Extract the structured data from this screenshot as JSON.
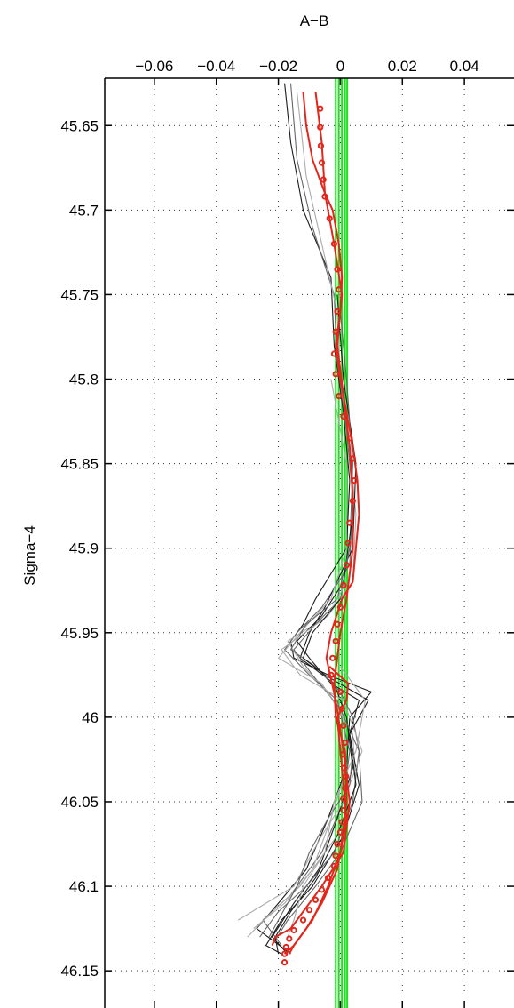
{
  "chart_data": {
    "type": "line",
    "title": "",
    "xlabel": "A−B",
    "ylabel": "Sigma−4",
    "xlim": [
      -0.076,
      0.056
    ],
    "ylim": [
      45.622,
      46.172
    ],
    "y_reversed": true,
    "x_axis_position": "top",
    "x_ticks": [
      -0.06,
      -0.04,
      -0.02,
      0,
      0.02,
      0.04
    ],
    "x_tick_labels": [
      "−0.06",
      "−0.04",
      "−0.02",
      "0",
      "0.02",
      "0.04"
    ],
    "y_ticks": [
      45.65,
      45.7,
      45.75,
      45.8,
      45.85,
      45.9,
      45.95,
      46.0,
      46.05,
      46.1,
      46.15
    ],
    "y_tick_labels": [
      "45.65",
      "45.7",
      "45.75",
      "45.8",
      "45.85",
      "45.9",
      "45.95",
      "46",
      "46.05",
      "46.1",
      "46.15"
    ],
    "grid": "dotted",
    "colors": {
      "points": "#e3261b",
      "red_lines": "#e3261b",
      "green_lines": "#1fe01f",
      "dark_lines": "#1a1a1a",
      "mid_lines": "#666666",
      "light_lines": "#aaaaaa"
    },
    "green_lines_x": [
      -0.0015,
      -0.0005,
      0.0005,
      0.0015,
      0.0022
    ],
    "points": {
      "sigma": [
        45.64,
        45.651,
        45.662,
        45.672,
        45.682,
        45.692,
        45.705,
        45.72,
        45.735,
        45.747,
        45.76,
        45.772,
        45.785,
        45.797,
        45.81,
        45.822,
        45.835,
        45.847,
        45.86,
        45.872,
        45.885,
        45.897,
        45.91,
        45.922,
        45.935,
        45.945,
        45.955,
        45.965,
        45.975,
        45.985,
        45.995,
        46.005,
        46.015,
        46.022,
        46.03,
        46.035,
        46.042,
        46.048,
        46.055,
        46.062,
        46.068,
        46.075,
        46.082,
        46.088,
        46.095,
        46.102,
        46.108,
        46.114,
        46.12,
        46.126,
        46.131,
        46.136,
        46.14,
        46.145
      ],
      "a_minus_b": [
        -0.0065,
        -0.0065,
        -0.0063,
        -0.006,
        -0.0055,
        -0.005,
        -0.0035,
        -0.002,
        -0.001,
        -0.0005,
        -0.001,
        -0.0015,
        -0.002,
        -0.0015,
        -0.0005,
        0.001,
        0.003,
        0.004,
        0.0045,
        0.004,
        0.003,
        0.0025,
        0.002,
        0.001,
        0.0,
        -0.001,
        -0.0015,
        -0.0025,
        -0.003,
        0.0,
        0.0005,
        0.001,
        0.0015,
        0.0008,
        0.0012,
        0.0018,
        0.0015,
        0.001,
        0.001,
        0.0005,
        0.0,
        -0.001,
        -0.0015,
        -0.002,
        -0.004,
        -0.006,
        -0.008,
        -0.01,
        -0.012,
        -0.015,
        -0.0165,
        -0.0175,
        -0.018,
        -0.018
      ]
    },
    "red_lines": [
      {
        "sigma": [
          45.63,
          45.65,
          45.67,
          45.69,
          45.7,
          45.72,
          45.74,
          45.76,
          45.78,
          45.8,
          45.82,
          45.84,
          45.86,
          45.88,
          45.9,
          45.92,
          45.93,
          45.95,
          45.965,
          45.99,
          46.02,
          46.05,
          46.08,
          46.1,
          46.115,
          46.125,
          46.13,
          46.135
        ],
        "a_minus_b": [
          -0.012,
          -0.011,
          -0.009,
          -0.005,
          -0.0025,
          -0.0005,
          0.0005,
          0.0,
          -0.0015,
          0.0,
          0.002,
          0.004,
          0.0055,
          0.006,
          0.005,
          0.004,
          0.0005,
          -0.003,
          -0.0045,
          -0.0015,
          0.001,
          0.003,
          0.001,
          -0.006,
          -0.012,
          -0.016,
          -0.021,
          -0.022
        ]
      },
      {
        "sigma": [
          45.63,
          45.66,
          45.69,
          45.72,
          45.75,
          45.78,
          45.81,
          45.84,
          45.87,
          45.9,
          45.93,
          45.95,
          45.98,
          46.0,
          46.02,
          46.05,
          46.08,
          46.1,
          46.12,
          46.135,
          46.14
        ],
        "a_minus_b": [
          -0.008,
          -0.006,
          -0.005,
          -0.002,
          0.0005,
          -0.001,
          0.001,
          0.003,
          0.004,
          0.004,
          0.002,
          0.0,
          -0.002,
          -0.0015,
          0.0015,
          0.002,
          0.0,
          -0.004,
          -0.009,
          -0.015,
          -0.018
        ]
      },
      {
        "sigma": [
          45.97,
          45.98,
          45.99,
          46.0,
          46.02,
          46.04,
          46.06,
          46.09,
          46.11,
          46.125,
          46.135,
          46.14
        ],
        "a_minus_b": [
          -0.0035,
          0.0025,
          0.002,
          -0.001,
          0.0,
          0.001,
          0.002,
          -0.001,
          -0.006,
          -0.011,
          -0.015,
          -0.0165
        ]
      }
    ],
    "gray_lines": [
      {
        "shade": "dark",
        "sigma": [
          45.625,
          45.66,
          45.7,
          45.74,
          45.78,
          45.82,
          45.86,
          45.9,
          45.93,
          45.945,
          45.955,
          45.965,
          45.975,
          45.985,
          46.0,
          46.03,
          46.06,
          46.09,
          46.11,
          46.125,
          46.14
        ],
        "a_minus_b": [
          -0.018,
          -0.016,
          -0.012,
          -0.003,
          -0.002,
          0.001,
          0.003,
          0.002,
          -0.008,
          -0.012,
          -0.016,
          -0.015,
          -0.004,
          0.01,
          0.003,
          0.002,
          -0.004,
          -0.011,
          -0.02,
          -0.027,
          -0.016
        ]
      },
      {
        "shade": "mid",
        "sigma": [
          45.625,
          45.67,
          45.71,
          45.75,
          45.79,
          45.83,
          45.87,
          45.91,
          45.935,
          45.95,
          45.96,
          45.975,
          45.99,
          46.02,
          46.05,
          46.08,
          46.105,
          46.12,
          46.135
        ],
        "a_minus_b": [
          -0.016,
          -0.014,
          -0.009,
          -0.002,
          -0.001,
          0.002,
          0.004,
          0.003,
          -0.006,
          -0.014,
          -0.018,
          -0.01,
          -0.001,
          0.003,
          0.001,
          -0.006,
          -0.016,
          -0.025,
          -0.019
        ]
      },
      {
        "shade": "light",
        "sigma": [
          45.63,
          45.68,
          45.72,
          45.76,
          45.8,
          45.84,
          45.88,
          45.92,
          45.94,
          45.955,
          45.97,
          45.985,
          46.01,
          46.04,
          46.07,
          46.1,
          46.115,
          46.13
        ],
        "a_minus_b": [
          -0.014,
          -0.011,
          -0.006,
          -0.001,
          0.0,
          0.003,
          0.005,
          0.004,
          -0.004,
          -0.017,
          -0.012,
          -0.004,
          0.004,
          0.005,
          -0.001,
          -0.013,
          -0.022,
          -0.03
        ]
      },
      {
        "shade": "dark",
        "sigma": [
          45.75,
          45.8,
          45.85,
          45.9,
          45.935,
          45.95,
          45.965,
          45.98,
          46.0,
          46.03,
          46.06,
          46.09,
          46.11,
          46.13,
          46.14
        ],
        "a_minus_b": [
          -0.001,
          0.001,
          0.005,
          0.004,
          -0.005,
          -0.01,
          -0.013,
          -0.002,
          0.002,
          0.004,
          -0.001,
          -0.007,
          -0.015,
          -0.022,
          -0.017
        ]
      },
      {
        "shade": "mid",
        "sigma": [
          45.76,
          45.8,
          45.85,
          45.9,
          45.93,
          45.945,
          45.96,
          45.975,
          45.995,
          46.02,
          46.05,
          46.08,
          46.1,
          46.12,
          46.135
        ],
        "a_minus_b": [
          0.0,
          0.002,
          0.004,
          0.003,
          0.0,
          -0.008,
          -0.015,
          -0.009,
          0.0,
          0.006,
          0.007,
          0.0,
          -0.008,
          -0.017,
          -0.022
        ]
      },
      {
        "shade": "light",
        "sigma": [
          45.8,
          45.85,
          45.9,
          45.93,
          45.95,
          45.965,
          45.98,
          46.0,
          46.03,
          46.06,
          46.09,
          46.11,
          46.125
        ],
        "a_minus_b": [
          -0.003,
          0.002,
          0.002,
          -0.003,
          -0.013,
          -0.02,
          -0.006,
          0.001,
          0.002,
          -0.003,
          -0.009,
          -0.018,
          -0.028
        ]
      },
      {
        "shade": "dark",
        "sigma": [
          45.88,
          45.92,
          45.94,
          45.955,
          45.965,
          45.98,
          45.99,
          46.01,
          46.04,
          46.07,
          46.1,
          46.12,
          46.135,
          46.14
        ],
        "a_minus_b": [
          0.004,
          0.001,
          -0.006,
          -0.014,
          -0.01,
          -0.003,
          0.006,
          0.003,
          0.006,
          0.001,
          -0.009,
          -0.019,
          -0.024,
          -0.019
        ]
      },
      {
        "shade": "mid",
        "sigma": [
          45.9,
          45.93,
          45.945,
          45.96,
          45.97,
          45.985,
          46.0,
          46.02,
          46.05,
          46.08,
          46.1,
          46.115,
          46.13
        ],
        "a_minus_b": [
          0.003,
          -0.001,
          -0.011,
          -0.016,
          -0.008,
          0.0,
          0.004,
          0.006,
          0.004,
          -0.002,
          -0.011,
          -0.02,
          -0.026
        ]
      },
      {
        "shade": "light",
        "sigma": [
          45.92,
          45.94,
          45.96,
          45.975,
          45.99,
          46.02,
          46.05,
          46.07,
          46.1,
          46.12
        ],
        "a_minus_b": [
          0.002,
          -0.004,
          -0.019,
          -0.013,
          0.001,
          0.007,
          0.001,
          -0.006,
          -0.015,
          -0.033
        ]
      },
      {
        "shade": "dark",
        "sigma": [
          45.93,
          45.95,
          45.965,
          45.975,
          45.99,
          46.01,
          46.04,
          46.07,
          46.095,
          46.115,
          46.13,
          46.14
        ],
        "a_minus_b": [
          0.0,
          -0.009,
          -0.012,
          -0.005,
          0.009,
          0.003,
          0.005,
          -0.001,
          -0.008,
          -0.016,
          -0.021,
          -0.02
        ]
      },
      {
        "shade": "mid",
        "sigma": [
          46.02,
          46.04,
          46.06,
          46.08,
          46.1,
          46.12,
          46.13
        ],
        "a_minus_b": [
          0.004,
          0.003,
          -0.004,
          -0.01,
          -0.014,
          -0.02,
          -0.023
        ]
      },
      {
        "shade": "light",
        "sigma": [
          45.97,
          45.99,
          46.02,
          46.05,
          46.08,
          46.1,
          46.12,
          46.13
        ],
        "a_minus_b": [
          0.0,
          0.008,
          0.005,
          -0.002,
          -0.005,
          -0.012,
          -0.015,
          -0.017
        ]
      }
    ]
  }
}
